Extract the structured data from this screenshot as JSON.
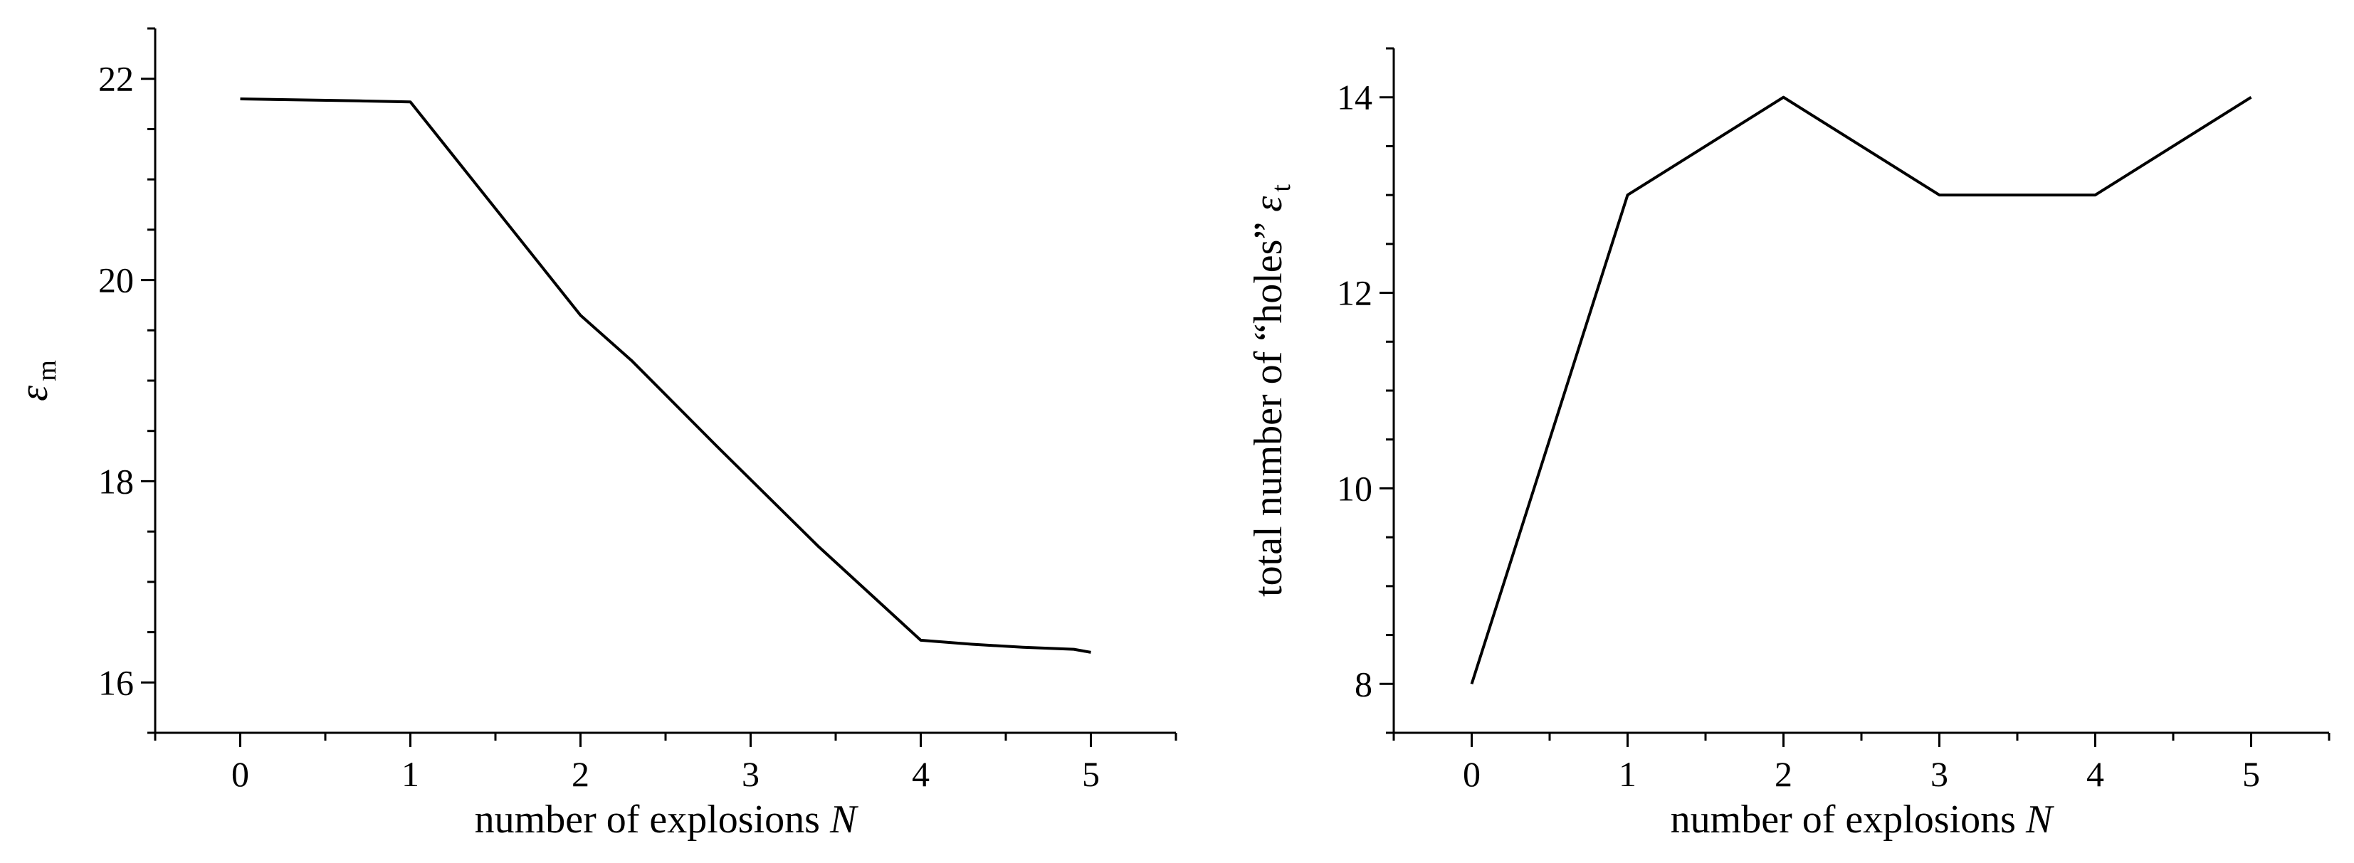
{
  "chart_data": [
    {
      "type": "line",
      "title": "",
      "xlabel": "number of explosions",
      "xlabel_var": "N",
      "ylabel_symbol": "ε",
      "ylabel_subscript": "m",
      "xlim": [
        -0.5,
        5.5
      ],
      "ylim": [
        15.5,
        22.5
      ],
      "x_ticks": [
        0,
        1,
        2,
        3,
        4,
        5
      ],
      "y_ticks": [
        16,
        18,
        20,
        22
      ],
      "x_tick_labels": [
        "0",
        "1",
        "2",
        "3",
        "4",
        "5"
      ],
      "y_tick_labels": [
        "16",
        "18",
        "20",
        "22"
      ],
      "grid": false,
      "series": [
        {
          "x": [
            0,
            0.7,
            1,
            2,
            2.3,
            2.8,
            3.4,
            4,
            4.3,
            4.6,
            4.9,
            5
          ],
          "values": [
            21.8,
            21.78,
            21.77,
            19.65,
            19.2,
            18.35,
            17.35,
            16.42,
            16.38,
            16.35,
            16.33,
            16.3
          ]
        }
      ]
    },
    {
      "type": "line",
      "title": "",
      "xlabel": "number of explosions",
      "xlabel_var": "N",
      "ylabel_text": "total number of “holes”",
      "ylabel_symbol": "ε",
      "ylabel_subscript": "t",
      "xlim": [
        -0.5,
        5.5
      ],
      "ylim": [
        7.5,
        14.5
      ],
      "x_ticks": [
        0,
        1,
        2,
        3,
        4,
        5
      ],
      "y_ticks": [
        8,
        10,
        12,
        14
      ],
      "x_tick_labels": [
        "0",
        "1",
        "2",
        "3",
        "4",
        "5"
      ],
      "y_tick_labels": [
        "8",
        "10",
        "12",
        "14"
      ],
      "grid": false,
      "series": [
        {
          "x": [
            0,
            1,
            2,
            3,
            4,
            5
          ],
          "values": [
            8,
            13,
            14,
            13,
            13,
            14
          ]
        }
      ]
    }
  ]
}
